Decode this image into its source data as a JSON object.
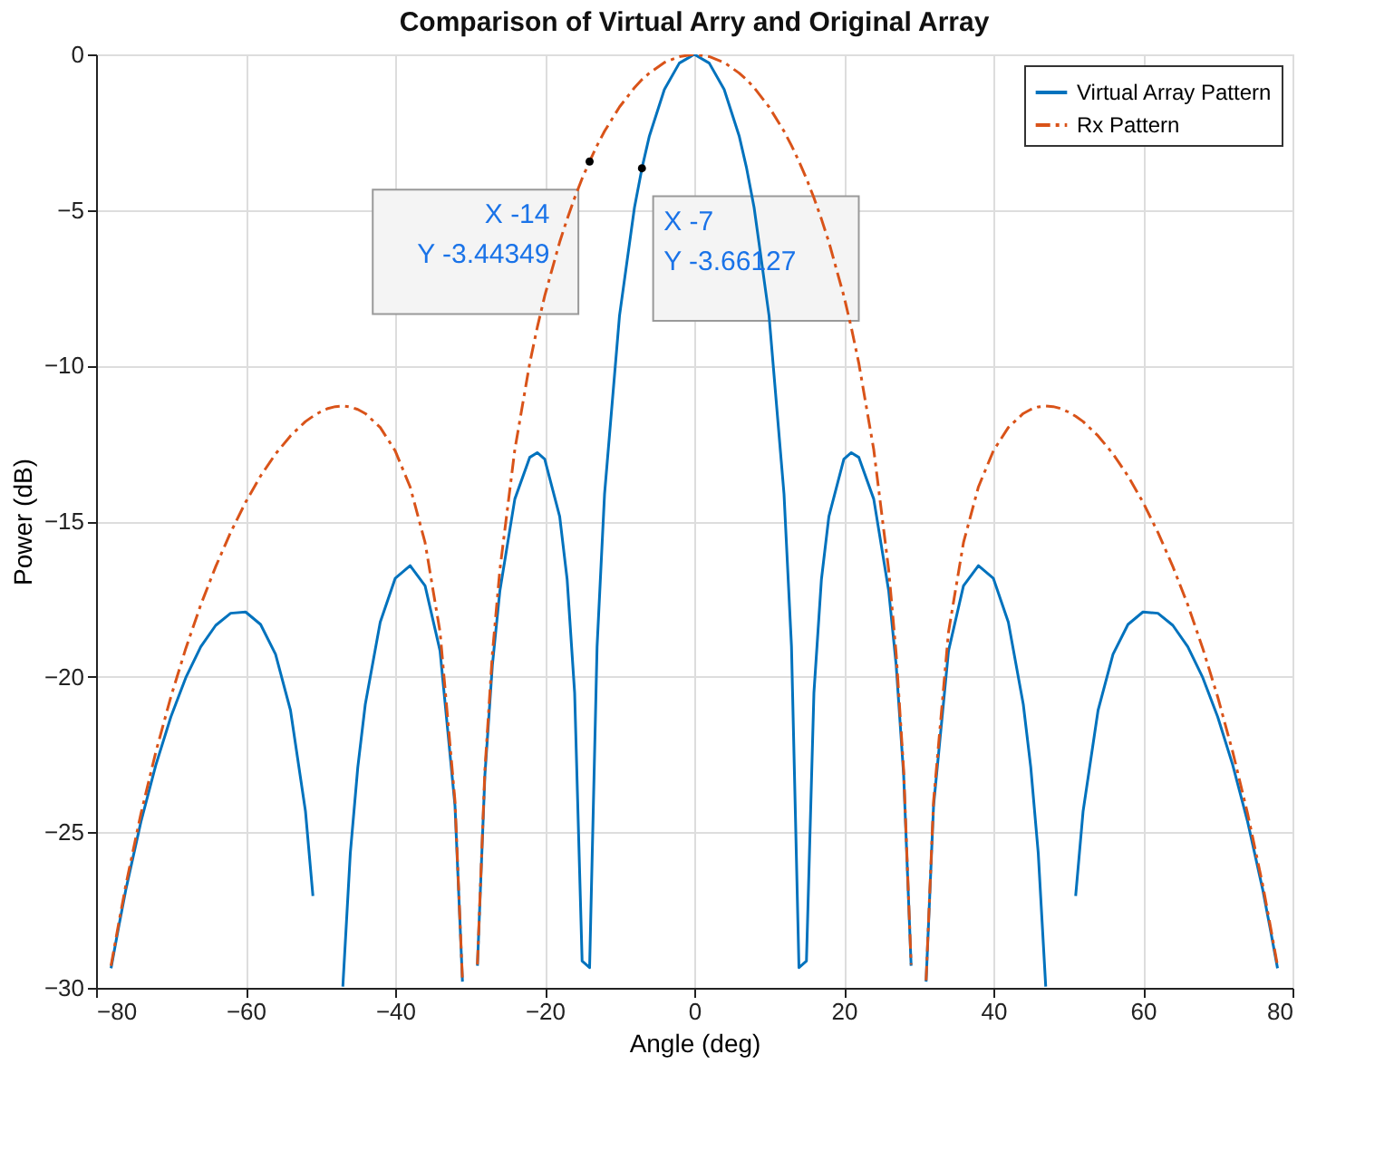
{
  "chart_data": {
    "type": "line",
    "title": "Comparison of Virtual Arry and Original Array",
    "xlabel": "Angle (deg)",
    "ylabel": "Power (dB)",
    "x": [
      -78,
      -77,
      -76,
      -74,
      -72,
      -70,
      -68,
      -66,
      -64,
      -62,
      -60,
      -58,
      -56,
      -54,
      -52,
      -51,
      -50,
      -49,
      -48,
      -47,
      -46,
      -45,
      -44,
      -42,
      -40,
      -38,
      -36,
      -34,
      -32,
      -31,
      -30,
      -29,
      -28,
      -27,
      -26,
      -24,
      -22,
      -21,
      -20,
      -18,
      -17,
      -16,
      -15,
      -14,
      -13,
      -12,
      -10,
      -8,
      -7,
      -6,
      -4,
      -2,
      0,
      2,
      4,
      6,
      7,
      8,
      10,
      12,
      13,
      14,
      15,
      16,
      17,
      18,
      20,
      21,
      22,
      24,
      26,
      27,
      28,
      29,
      30,
      31,
      32,
      34,
      36,
      38,
      40,
      42,
      44,
      45,
      46,
      47,
      48,
      49,
      50,
      51,
      52,
      54,
      56,
      58,
      60,
      62,
      64,
      66,
      68,
      70,
      72,
      74,
      76,
      77,
      78
    ],
    "series": [
      {
        "name": "Virtual Array Pattern",
        "color": "#0072bd",
        "line_style": "solid",
        "values": [
          -29.37,
          -28.07,
          -26.82,
          -24.66,
          -22.83,
          -21.29,
          -20.03,
          -19.04,
          -18.35,
          -17.96,
          -17.92,
          -18.32,
          -19.28,
          -21.08,
          -24.32,
          -27.05,
          null,
          null,
          null,
          -29.96,
          -25.67,
          -22.91,
          -20.89,
          -18.25,
          -16.84,
          -16.43,
          -17.08,
          -19.17,
          -24.15,
          -29.8,
          null,
          -29.29,
          -23.16,
          -19.63,
          -17.24,
          -14.29,
          -12.95,
          -12.8,
          -13.01,
          -14.85,
          -16.88,
          -20.52,
          -29.14,
          -29.35,
          -19.03,
          -14.13,
          -8.4,
          -4.92,
          -3.66,
          -2.62,
          -1.13,
          -0.28,
          0,
          -0.28,
          -1.13,
          -2.62,
          -3.66,
          -4.92,
          -8.4,
          -14.13,
          -19.03,
          -29.35,
          -29.14,
          -20.52,
          -16.88,
          -14.85,
          -13.01,
          -12.8,
          -12.95,
          -14.29,
          -17.24,
          -19.63,
          -23.16,
          -29.29,
          null,
          -29.8,
          -24.15,
          -19.17,
          -17.08,
          -16.43,
          -16.84,
          -18.25,
          -20.89,
          -22.91,
          -25.67,
          -29.96,
          null,
          null,
          null,
          -27.05,
          -24.32,
          -21.08,
          -19.28,
          -18.32,
          -17.92,
          -17.96,
          -18.35,
          -19.04,
          -20.03,
          -21.29,
          -22.83,
          -24.66,
          -26.82,
          -28.07,
          -29.37
        ]
      },
      {
        "name": "Rx Pattern",
        "color": "#d95319",
        "line_style": "dashed",
        "values": [
          -29.29,
          -27.96,
          -26.67,
          -24.4,
          -22.41,
          -20.65,
          -19.09,
          -17.69,
          -16.46,
          -15.36,
          -14.39,
          -13.55,
          -12.84,
          -12.26,
          -11.8,
          -11.63,
          -11.49,
          -11.38,
          -11.32,
          -11.3,
          -11.33,
          -11.41,
          -11.54,
          -11.99,
          -12.74,
          -13.9,
          -15.69,
          -18.56,
          -24.0,
          -29.76,
          null,
          -29.25,
          -23.0,
          -19.26,
          -16.57,
          -12.7,
          -9.92,
          -8.78,
          -7.76,
          -6.03,
          -5.29,
          -4.61,
          -3.99,
          -3.44,
          -2.93,
          -2.47,
          -1.69,
          -1.07,
          -0.81,
          -0.6,
          -0.26,
          -0.07,
          0,
          -0.07,
          -0.26,
          -0.6,
          -0.81,
          -1.07,
          -1.69,
          -2.47,
          -2.93,
          -3.44,
          -3.99,
          -4.61,
          -5.29,
          -6.03,
          -7.76,
          -8.78,
          -9.92,
          -12.7,
          -16.57,
          -19.26,
          -23.0,
          -29.25,
          null,
          -29.76,
          -24.0,
          -18.56,
          -15.69,
          -13.9,
          -12.74,
          -11.99,
          -11.54,
          -11.41,
          -11.33,
          -11.3,
          -11.32,
          -11.38,
          -11.49,
          -11.63,
          -11.8,
          -12.26,
          -12.84,
          -13.55,
          -14.39,
          -15.36,
          -16.46,
          -17.69,
          -19.09,
          -20.65,
          -22.41,
          -24.4,
          -26.67,
          -27.96,
          -29.29
        ]
      }
    ],
    "xlim": [
      -80,
      80
    ],
    "xticks": [
      -80,
      -60,
      -40,
      -20,
      0,
      20,
      40,
      60,
      80
    ],
    "ylim": [
      -30,
      0
    ],
    "yticks": [
      -30,
      -25,
      -20,
      -15,
      -10,
      -5,
      0
    ],
    "grid": true,
    "legend": "top right",
    "marker": "none",
    "annotations": [
      {
        "text": "X -14\nY -3.44349",
        "x": -14,
        "y": -3.44349
      },
      {
        "text": "X -7\nY -3.66127",
        "x": -7,
        "y": -3.66127
      }
    ]
  }
}
